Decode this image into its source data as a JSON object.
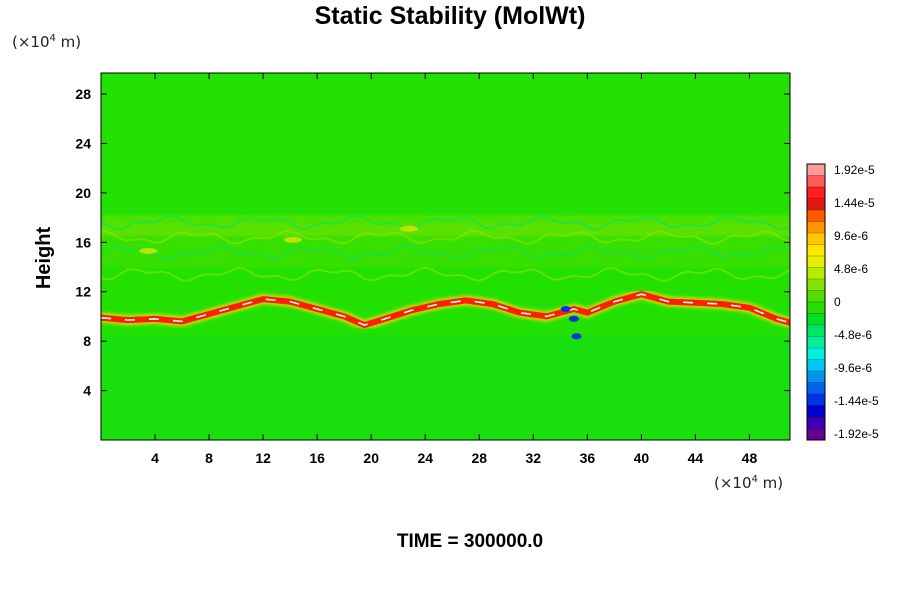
{
  "chart_data": {
    "type": "heatmap",
    "title": "Static Stability (MolWt)",
    "ylabel": "Height",
    "x_unit_prefix": "(×10",
    "x_unit_exp": "4",
    "x_unit_suffix": " m)",
    "y_unit_prefix": "(×10",
    "y_unit_exp": "4",
    "y_unit_suffix": " m)",
    "xlim": [
      0,
      51
    ],
    "ylim": [
      0,
      29.7
    ],
    "xticks": [
      4,
      8,
      12,
      16,
      20,
      24,
      28,
      32,
      36,
      40,
      44,
      48
    ],
    "yticks": [
      4,
      8,
      12,
      16,
      20,
      24,
      28
    ],
    "colorbar": {
      "labels": [
        "1.92e-5",
        "1.44e-5",
        "9.6e-6",
        "4.8e-6",
        "0",
        "-4.8e-6",
        "-9.6e-6",
        "-1.44e-5",
        "-1.92e-5"
      ],
      "colors": [
        "#ff9a9a",
        "#ff5a5a",
        "#ff1e1e",
        "#e21818",
        "#ff5a00",
        "#ff9600",
        "#ffc800",
        "#ffe600",
        "#e6f000",
        "#b4ee00",
        "#82e600",
        "#50e000",
        "#28dc00",
        "#00dc28",
        "#00e664",
        "#00f0a0",
        "#00f0dc",
        "#00c8f0",
        "#0096f0",
        "#0064f0",
        "#0032e6",
        "#0000d2",
        "#3c00b4",
        "#640096"
      ]
    },
    "field_note_colors": {
      "background": "#22e100",
      "positive_band": "#ff1e00",
      "peak": "#ffffff",
      "negative": "#0032e6"
    },
    "tropopause_band": {
      "x": [
        0,
        2,
        4,
        6,
        8,
        10,
        12,
        14,
        16,
        18,
        19.5,
        21,
        23,
        25,
        27,
        29,
        31,
        33,
        35,
        36,
        38,
        40,
        42,
        44,
        46,
        48,
        50,
        51
      ],
      "y": [
        9.9,
        9.7,
        9.8,
        9.6,
        10.2,
        10.8,
        11.4,
        11.2,
        10.6,
        10.0,
        9.3,
        9.8,
        10.5,
        11.0,
        11.3,
        11.0,
        10.3,
        10.0,
        10.6,
        10.3,
        11.2,
        11.8,
        11.2,
        11.1,
        11.0,
        10.7,
        9.8,
        9.5
      ]
    },
    "time_label": "TIME = 300000.0"
  }
}
